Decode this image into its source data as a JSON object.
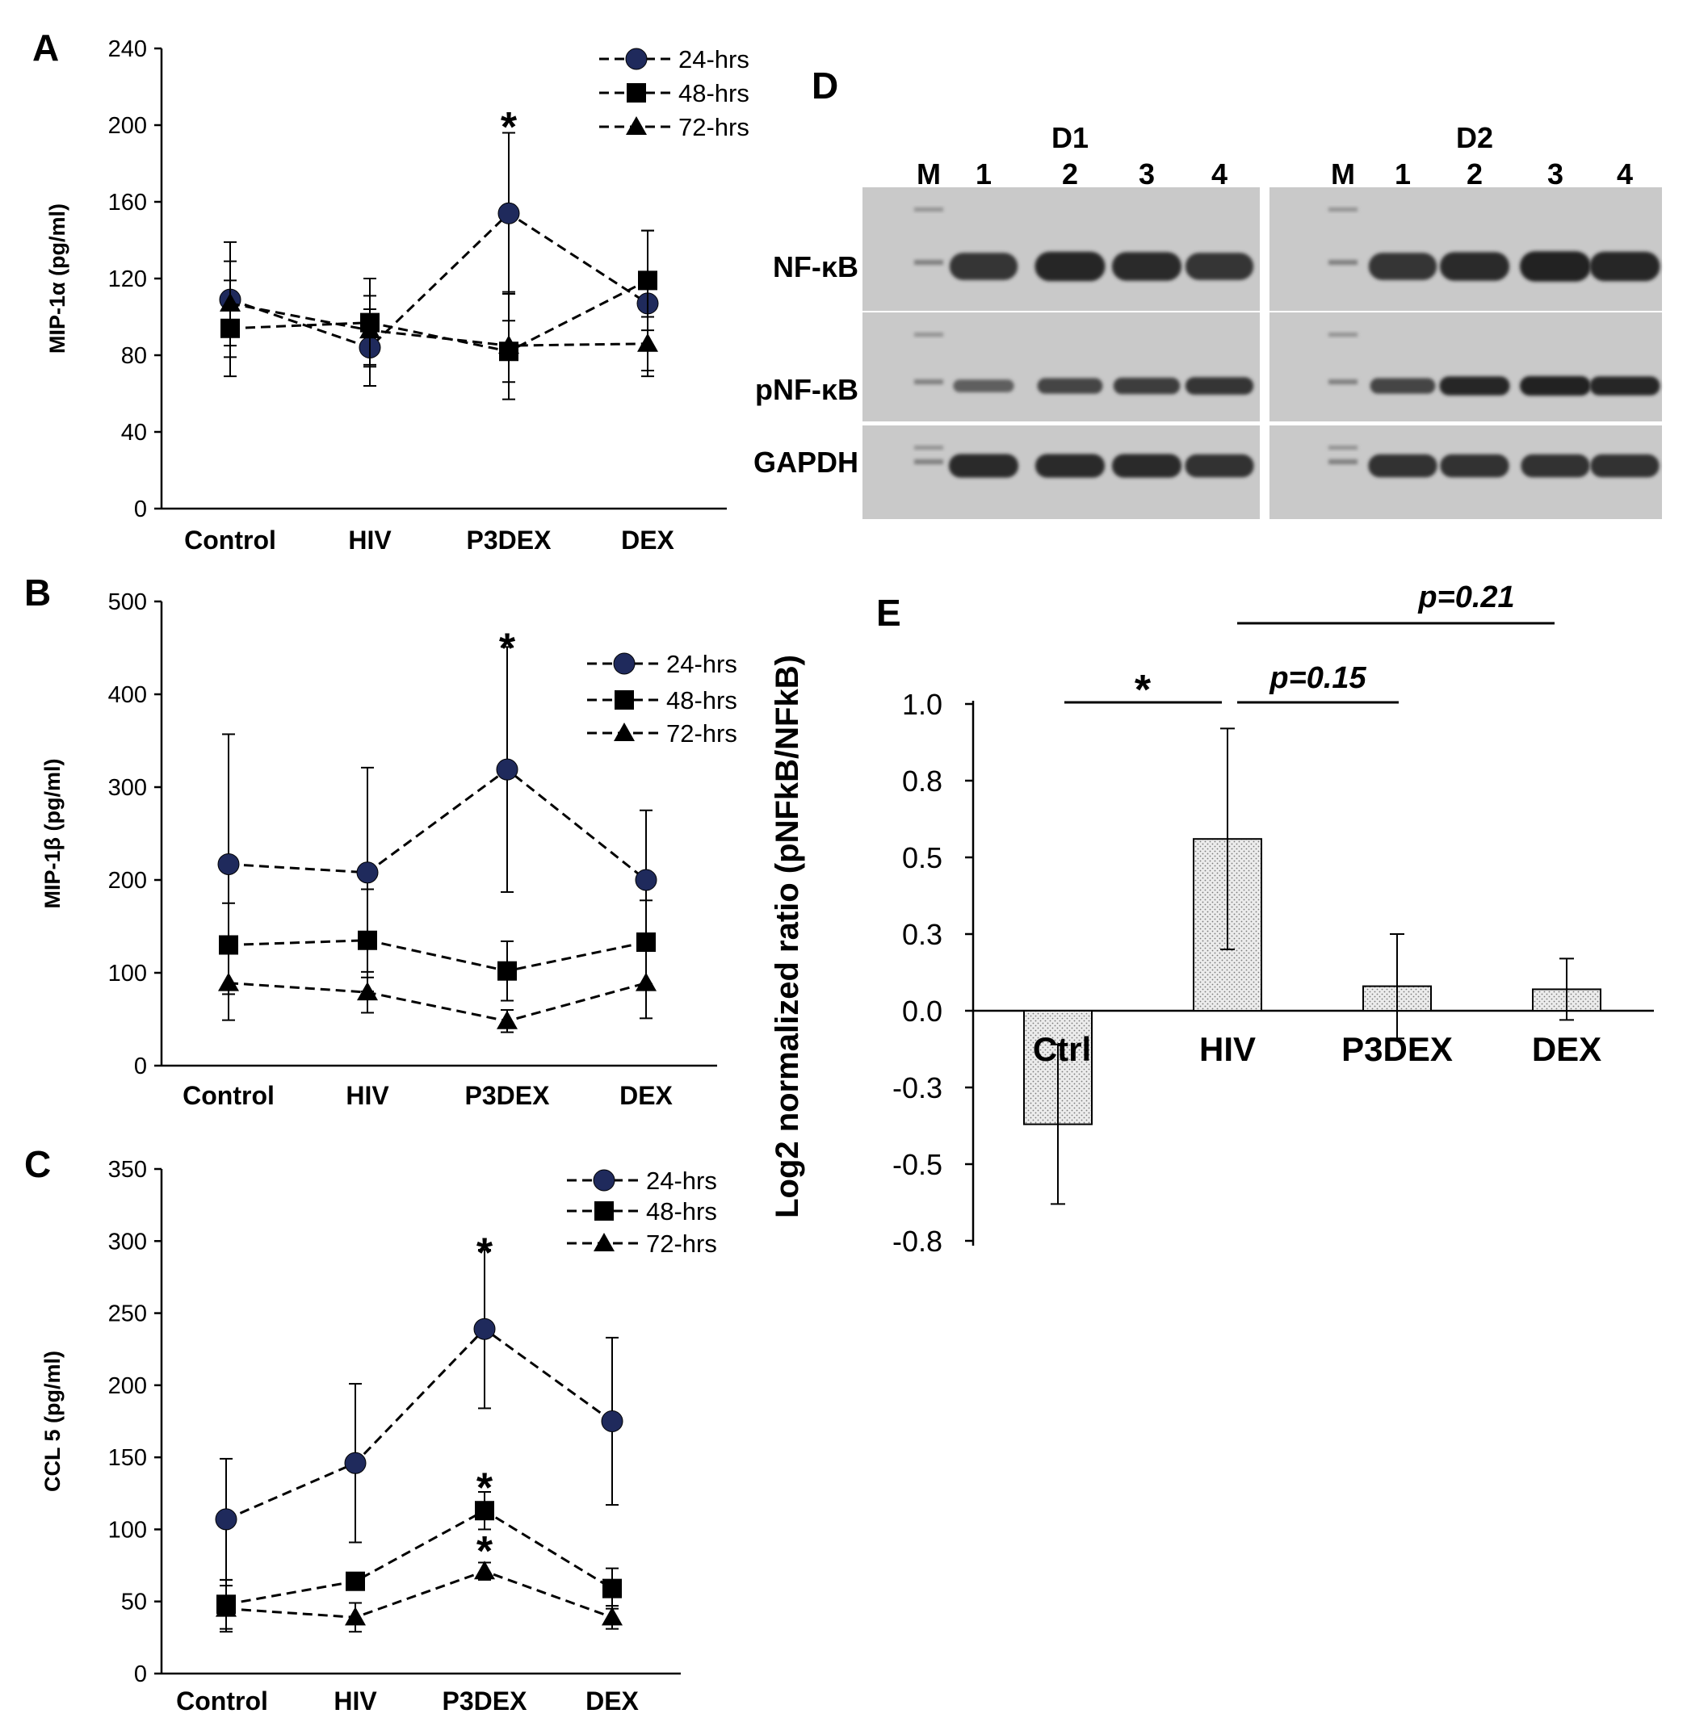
{
  "panels": {
    "A": {
      "letter": "A"
    },
    "B": {
      "letter": "B"
    },
    "C": {
      "letter": "C"
    },
    "D": {
      "letter": "D"
    },
    "E": {
      "letter": "E"
    }
  },
  "chart_data": [
    {
      "panel": "A",
      "type": "line",
      "line_style": "dashed",
      "categories": [
        "Control",
        "HIV",
        "P3DEX",
        "DEX"
      ],
      "ylabel": "MIP-1α (pg/ml)",
      "ylim": [
        0,
        240
      ],
      "yticks": [
        0,
        40,
        80,
        120,
        160,
        200,
        240
      ],
      "series": [
        {
          "name": "24-hrs",
          "marker": "circle",
          "color": "#1f2a5c",
          "values": [
            109,
            84,
            154,
            107
          ],
          "errors": [
            30,
            20,
            42,
            38
          ]
        },
        {
          "name": "48-hrs",
          "marker": "square",
          "color": "#000000",
          "values": [
            94,
            97,
            82,
            119
          ],
          "errors": [
            25,
            23,
            16,
            26
          ]
        },
        {
          "name": "72-hrs",
          "marker": "triangle",
          "color": "#000000",
          "values": [
            107,
            93,
            85,
            86
          ],
          "errors": [
            22,
            18,
            28,
            14
          ]
        }
      ],
      "annotations": [
        {
          "category": "P3DEX",
          "text": "*",
          "y": 205
        }
      ],
      "legend_position": "top-right"
    },
    {
      "panel": "B",
      "type": "line",
      "line_style": "dashed",
      "categories": [
        "Control",
        "HIV",
        "P3DEX",
        "DEX"
      ],
      "ylabel": "MIP-1β (pg/ml)",
      "ylim": [
        0,
        500
      ],
      "yticks": [
        0,
        100,
        200,
        300,
        400,
        500
      ],
      "series": [
        {
          "name": "24-hrs",
          "marker": "circle",
          "color": "#1f2a5c",
          "values": [
            217,
            208,
            319,
            200
          ],
          "errors": [
            140,
            113,
            132,
            75
          ]
        },
        {
          "name": "48-hrs",
          "marker": "square",
          "color": "#000000",
          "values": [
            130,
            135,
            102,
            133
          ],
          "errors": [
            45,
            55,
            32,
            45
          ]
        },
        {
          "name": "72-hrs",
          "marker": "triangle",
          "color": "#000000",
          "values": [
            89,
            79,
            48,
            89
          ],
          "errors": [
            40,
            22,
            12,
            38
          ]
        }
      ],
      "annotations": [
        {
          "category": "P3DEX",
          "text": "*",
          "y": 462
        }
      ],
      "legend_position": "top-right"
    },
    {
      "panel": "C",
      "type": "line",
      "line_style": "dashed",
      "categories": [
        "Control",
        "HIV",
        "P3DEX",
        "DEX"
      ],
      "ylabel": "CCL 5 (pg/ml)",
      "ylim": [
        0,
        350
      ],
      "yticks": [
        0,
        50,
        100,
        150,
        200,
        250,
        300,
        350
      ],
      "series": [
        {
          "name": "24-hrs",
          "marker": "circle",
          "color": "#1f2a5c",
          "values": [
            107,
            146,
            239,
            175
          ],
          "errors": [
            42,
            55,
            55,
            58
          ]
        },
        {
          "name": "48-hrs",
          "marker": "square",
          "color": "#000000",
          "values": [
            48,
            64,
            113,
            59
          ],
          "errors": [
            17,
            0,
            13,
            14
          ]
        },
        {
          "name": "72-hrs",
          "marker": "triangle",
          "color": "#000000",
          "values": [
            45,
            39,
            71,
            39
          ],
          "errors": [
            16,
            10,
            6,
            8
          ]
        }
      ],
      "annotations": [
        {
          "category": "P3DEX",
          "text": "*",
          "y": 300
        },
        {
          "category": "P3DEX",
          "text": "*",
          "y": 137
        },
        {
          "category": "P3DEX",
          "text": "*",
          "y": 93
        }
      ],
      "legend_position": "top-right"
    },
    {
      "panel": "E",
      "type": "bar",
      "categories": [
        "Ctrl",
        "HIV",
        "P3DEX",
        "DEX"
      ],
      "values": [
        -0.37,
        0.56,
        0.08,
        0.07
      ],
      "errors": [
        0.26,
        0.36,
        0.17,
        0.1
      ],
      "ylabel": "Log2 normalized ratio (pNFkB/NFkB)",
      "ylim": [
        -0.75,
        1.0
      ],
      "yticks": [
        "-0.8",
        "-0.5",
        "-0.3",
        "0.0",
        "0.3",
        "0.5",
        "0.8",
        "1.0"
      ],
      "bar_fill": "dotted light gray",
      "significance": [
        {
          "from": "Ctrl",
          "to": "HIV",
          "text": "*"
        },
        {
          "from": "HIV",
          "to": "P3DEX",
          "text": "p=0.15"
        },
        {
          "from": "HIV",
          "to": "DEX",
          "text": "p=0.21"
        }
      ]
    }
  ],
  "blot": {
    "groups": [
      {
        "name": "D1",
        "lanes": [
          "M",
          "1",
          "2",
          "3",
          "4"
        ]
      },
      {
        "name": "D2",
        "lanes": [
          "M",
          "1",
          "2",
          "3",
          "4"
        ]
      }
    ],
    "rows": [
      {
        "label": "NF-κB",
        "d1": [
          0.8,
          0.95,
          0.9,
          0.8
        ],
        "d2": [
          0.8,
          0.9,
          1.0,
          0.95
        ]
      },
      {
        "label": "pNF-κB",
        "d1": [
          0.3,
          0.6,
          0.7,
          0.8
        ],
        "d2": [
          0.6,
          0.95,
          1.0,
          0.95
        ]
      },
      {
        "label": "GAPDH",
        "d1": [
          0.9,
          0.9,
          0.9,
          0.85
        ],
        "d2": [
          0.85,
          0.85,
          0.85,
          0.85
        ]
      }
    ]
  }
}
